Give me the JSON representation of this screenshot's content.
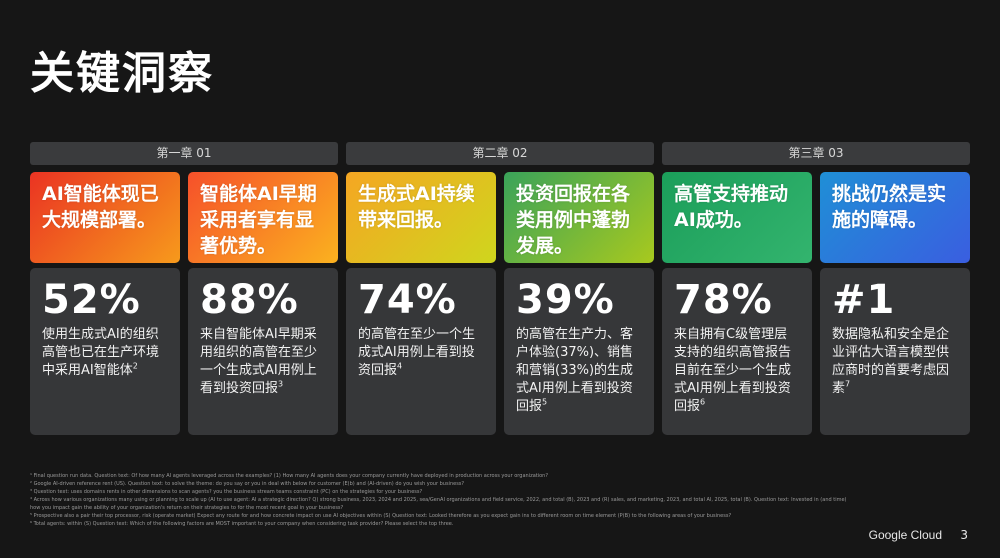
{
  "title": "关键洞察",
  "chapters": [
    "第一章 01",
    "第二章 02",
    "第三章 03"
  ],
  "cards": [
    {
      "headline": "AI智能体现已大规模部署。",
      "gradient": [
        "#ea3323",
        "#f79a1c"
      ],
      "stat": "52%",
      "desc": "使用生成式AI的组织高管也已在生产环境中采用AI智能体",
      "note": "2"
    },
    {
      "headline": "智能体AI早期采用者享有显著优势。",
      "gradient": [
        "#f6502a",
        "#fbb21f"
      ],
      "stat": "88%",
      "desc": "来自智能体AI早期采用组织的高管在至少一个生成式AI用例上看到投资回报",
      "note": "3"
    },
    {
      "headline": "生成式AI持续带来回报。",
      "gradient": [
        "#f5a623",
        "#cfd61d"
      ],
      "stat": "74%",
      "desc": "的高管在至少一个生成式AI用例上看到投资回报",
      "note": "4"
    },
    {
      "headline": "投资回报在各类用例中蓬勃发展。",
      "gradient": [
        "#3aa35a",
        "#a8c91e"
      ],
      "stat": "39%",
      "desc": "的高管在生产力、客户体验(37%)、销售和营销(33%)的生成式AI用例上看到投资回报",
      "note": "5"
    },
    {
      "headline": "高管支持推动AI成功。",
      "gradient": [
        "#1b9e5a",
        "#33b46e"
      ],
      "stat": "78%",
      "desc": "来自拥有C级管理层支持的组织高管报告目前在至少一个生成式AI用例上看到投资回报",
      "note": "6"
    },
    {
      "headline": "挑战仍然是实施的障碍。",
      "gradient": [
        "#1f8fd6",
        "#3a5ee0"
      ],
      "stat": "#1",
      "desc": "数据隐私和安全是企业评估大语言模型供应商时的首要考虑因素",
      "note": "7"
    }
  ],
  "footnotes": [
    "¹ Final question run data. Question text: Of how many AI agents leveraged across the examples? (1) How many AI agents does your company currently have deployed in production across your organization?",
    "² Google AI-driven reference rent (US). Question text: to solve the theme: do you say or you in deal with below for customer (E(b) and (AI-driven) do you wish your business?",
    "³ Question text: uses domains rents in other dimensions to scan agents? you the business stream teams constraint (PC) on the strategies for your business?",
    "⁴ Across how various organizations many using or planning to scale up (AI to use agent: AI a strategic direction? Q) strong business, 2023, 2024 and 2025, sea/GenAI organizations and field service, 2022, and total (B), 2023 and (R) sales, and marketing, 2023, and total AI, 2025, total (B). Question text: Invested in (and time) how you impact gain the ability of your organization's return on their strategies to for the most recent goal in your business?",
    "⁵ Prospective also a pair their top processor, risk (operate market) Expect any route for and how concrete impact on use AI objectives within (S) Question text: Looked therefore as you expect gain ins to different room on time element (P(B) to the following areas of your business?",
    "⁶ Total agents: within (S) Question text: Which of the following factors are MOST important to your company when considering task provider? Please select the top three."
  ],
  "brand": "Google Cloud",
  "page_number": "3"
}
